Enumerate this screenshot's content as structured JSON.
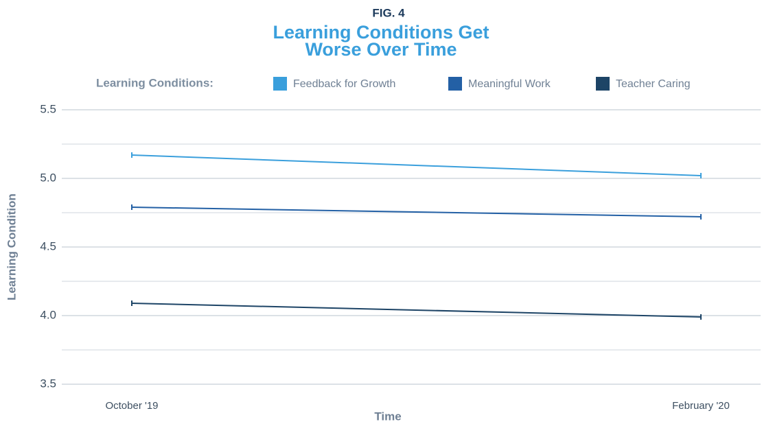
{
  "chart_data": {
    "type": "line",
    "fig_label": "FIG. 4",
    "title": "Learning Conditions Get Worse Over Time",
    "legend_title": "Learning Conditions:",
    "xlabel": "Time",
    "ylabel": "Learning Condition",
    "categories": [
      "October '19",
      "February '20"
    ],
    "series": [
      {
        "name": "Feedback for Growth",
        "color": "#3a9fdc",
        "values": [
          5.17,
          5.02
        ],
        "errors": [
          0.02,
          0.02
        ]
      },
      {
        "name": "Meaningful Work",
        "color": "#2360a5",
        "values": [
          4.79,
          4.72
        ],
        "errors": [
          0.02,
          0.02
        ]
      },
      {
        "name": "Teacher Caring",
        "color": "#1d4466",
        "values": [
          4.09,
          3.99
        ],
        "errors": [
          0.02,
          0.02
        ]
      }
    ],
    "ylim": [
      3.5,
      5.5
    ],
    "yticks": [
      {
        "value": 3.5,
        "label": "3.5"
      },
      {
        "value": 4,
        "label": "4.0"
      },
      {
        "value": 4.5,
        "label": "4.5"
      },
      {
        "value": 5,
        "label": "5.0"
      },
      {
        "value": 5.5,
        "label": "5.5"
      }
    ],
    "minor_yticks": [
      3.75,
      4.25,
      4.75,
      5.25
    ],
    "grid": true,
    "legend": "top"
  }
}
